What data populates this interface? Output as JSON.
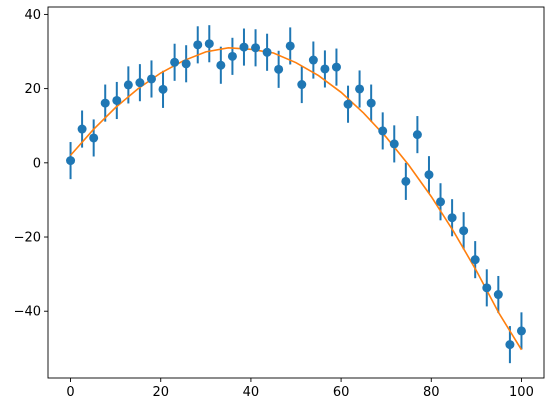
{
  "chart_data": {
    "type": "scatter",
    "title": "",
    "xlabel": "",
    "ylabel": "",
    "xlim": [
      -5,
      105
    ],
    "ylim": [
      -58,
      42
    ],
    "x_ticks": [
      0,
      20,
      40,
      60,
      80,
      100
    ],
    "y_ticks": [
      -40,
      -20,
      0,
      20,
      40
    ],
    "x_tick_labels": [
      "0",
      "20",
      "40",
      "60",
      "80",
      "100"
    ],
    "y_tick_labels": [
      "−40",
      "−20",
      "0",
      "20",
      "40"
    ],
    "grid": false,
    "legend": "none",
    "colors": {
      "points": "#1f77b4",
      "fit": "#ff7f0e"
    },
    "series": [
      {
        "kind": "errorbar",
        "error": 5,
        "x": [
          0,
          2.56,
          5.13,
          7.69,
          10.26,
          12.82,
          15.38,
          17.95,
          20.51,
          23.08,
          25.64,
          28.21,
          30.77,
          33.33,
          35.9,
          38.46,
          41.03,
          43.59,
          46.15,
          48.72,
          51.28,
          53.85,
          56.41,
          58.97,
          61.54,
          64.1,
          66.67,
          69.23,
          71.79,
          74.36,
          76.92,
          79.49,
          82.05,
          84.62,
          87.18,
          89.74,
          92.31,
          94.87,
          97.44,
          100
        ],
        "y": [
          0.6,
          9.1,
          6.7,
          16.1,
          16.8,
          21.0,
          21.6,
          22.6,
          19.8,
          27.1,
          26.7,
          31.8,
          32.1,
          26.3,
          28.7,
          31.2,
          31.0,
          29.8,
          25.2,
          31.5,
          21.1,
          27.7,
          25.3,
          25.8,
          15.8,
          19.9,
          16.1,
          8.6,
          5.1,
          -5.0,
          7.6,
          -3.2,
          -10.5,
          -14.8,
          -18.3,
          -26.1,
          -33.7,
          -35.5,
          -49.0,
          -45.3
        ]
      },
      {
        "kind": "line",
        "x": [
          0,
          5,
          10,
          15,
          20,
          25,
          30,
          35,
          40,
          45,
          50,
          55,
          60,
          65,
          70,
          75,
          80,
          85,
          90,
          95,
          100
        ],
        "y": [
          2.0,
          8.9,
          14.9,
          20.0,
          24.2,
          27.5,
          29.9,
          31.0,
          30.6,
          29.6,
          27.0,
          23.5,
          19.0,
          13.4,
          6.9,
          -0.6,
          -9.1,
          -18.6,
          -29.1,
          -40.5,
          -50.4
        ]
      }
    ]
  }
}
